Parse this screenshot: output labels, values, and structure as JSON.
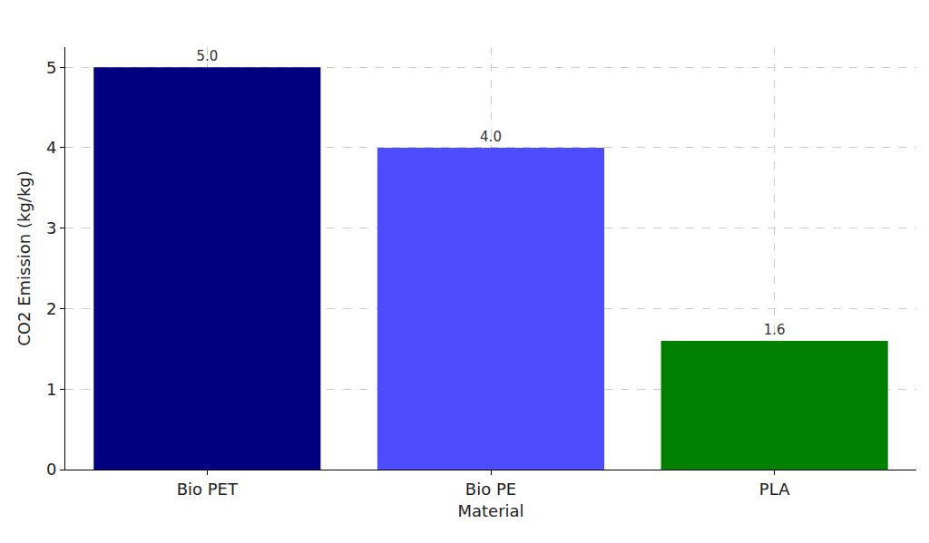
{
  "chart_data": {
    "type": "bar",
    "x_label": "Material",
    "y_label": "CO2 Emission (kg/kg)",
    "categories": [
      "Bio PET",
      "Bio PE",
      "PLA"
    ],
    "values": [
      5.0,
      4.0,
      1.6
    ],
    "value_labels": [
      "5.0",
      "4.0",
      "1.6"
    ],
    "colors": [
      "#000080",
      "#4d4dff",
      "#008000"
    ],
    "ylim": [
      0,
      5.25
    ],
    "yticks": [
      0,
      1,
      2,
      3,
      4,
      5
    ],
    "grid": true,
    "data_labels": true
  }
}
